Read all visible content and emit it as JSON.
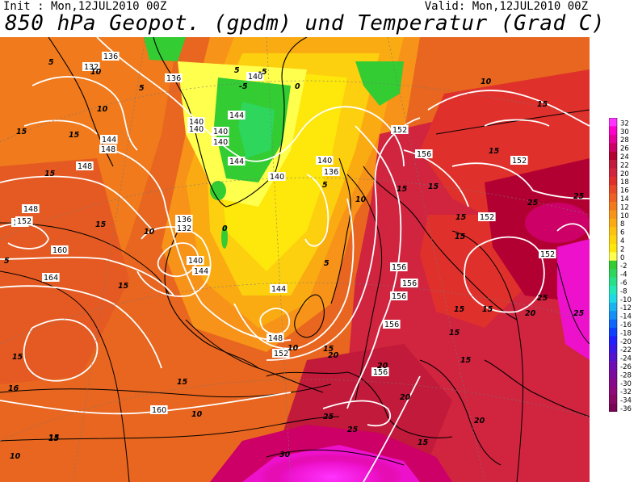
{
  "header": {
    "init": "Init : Mon,12JUL2010 00Z",
    "valid": "Valid: Mon,12JUL2010 00Z",
    "title": "850 hPa Geopot. (gpdm) und Temperatur (Grad C)"
  },
  "legend": {
    "values": [
      "32",
      "30",
      "28",
      "26",
      "24",
      "22",
      "20",
      "18",
      "16",
      "14",
      "12",
      "10",
      "8",
      "6",
      "4",
      "2",
      "0",
      "-2",
      "-4",
      "-6",
      "-8",
      "-10",
      "-12",
      "-14",
      "-16",
      "-18",
      "-20",
      "-22",
      "-24",
      "-26",
      "-28",
      "-30",
      "-32",
      "-34",
      "-36"
    ],
    "colors": [
      "#ff33ff",
      "#ff00cc",
      "#e6009a",
      "#cc0066",
      "#b30033",
      "#c21a3a",
      "#d0243f",
      "#e0302c",
      "#e64a26",
      "#ee6122",
      "#f27a1c",
      "#f79318",
      "#fbab12",
      "#fcc20e",
      "#fdd50a",
      "#fee70a",
      "#ffff4d",
      "#33cc33",
      "#2ed65c",
      "#29e08a",
      "#22e8b8",
      "#1cd9e6",
      "#19b3f0",
      "#1590f5",
      "#1166fa",
      "#0d40ff",
      "#1f1fff",
      "#3a17e6",
      "#5511cc",
      "#6e0db3",
      "#7d0a9e",
      "#880a8c",
      "#8f0a7a",
      "#8a0866",
      "#7a0555"
    ]
  },
  "map": {
    "geopotential_labels": [
      "136",
      "132",
      "136",
      "140",
      "144",
      "140",
      "148",
      "152",
      "148",
      "140",
      "144",
      "148",
      "152",
      "140",
      "140",
      "144",
      "140",
      "136",
      "140",
      "132",
      "136",
      "140",
      "144",
      "152",
      "160",
      "164",
      "144",
      "148",
      "152",
      "156",
      "156",
      "156",
      "156",
      "156",
      "152",
      "152",
      "152",
      "152",
      "156",
      "160"
    ],
    "temperature_labels": [
      "5",
      "10",
      "5",
      "-5",
      "-5",
      "0",
      "10",
      "15",
      "15",
      "15",
      "15",
      "10",
      "15",
      "5",
      "0",
      "10",
      "5",
      "10",
      "15",
      "15",
      "15",
      "15",
      "15",
      "15",
      "15",
      "15",
      "15",
      "15",
      "20",
      "20",
      "20",
      "20",
      "25",
      "25",
      "25",
      "25",
      "25",
      "25",
      "30",
      "15",
      "15",
      "16",
      "15",
      "10",
      "10",
      "15",
      "5",
      "5",
      "10",
      "15",
      "15",
      "20"
    ]
  }
}
